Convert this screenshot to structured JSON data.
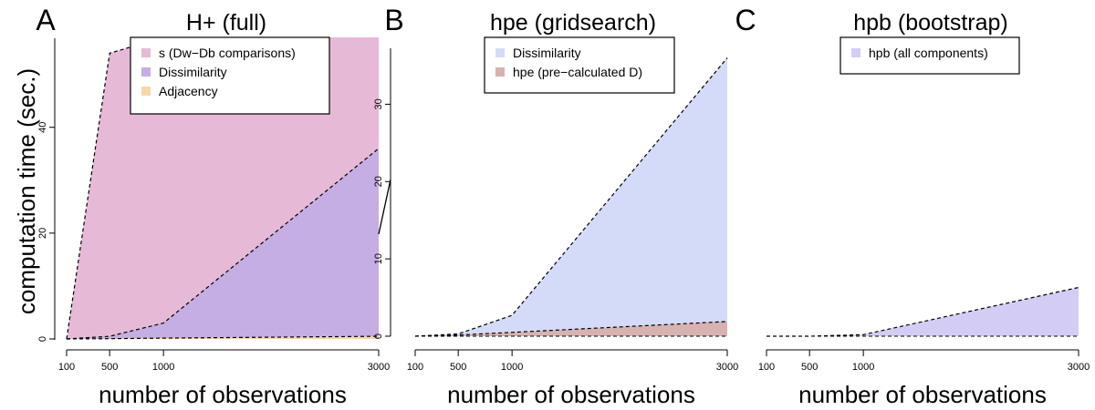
{
  "figure": {
    "ylabel": "computation time (sec.)",
    "xlabel": "number of observations"
  },
  "chart_data": [
    {
      "type": "area",
      "panel_letter": "A",
      "title": "H+ (full)",
      "xlabel": "number of observations",
      "ylabel": "computation time (sec.)",
      "x": [
        100,
        500,
        1000,
        3000
      ],
      "x_ticks": [
        "100",
        "500",
        "1000",
        "3000"
      ],
      "y_ticks": [
        "0",
        "20",
        "40"
      ],
      "xlim": [
        100,
        3000
      ],
      "ylim": [
        0,
        57
      ],
      "legend_position": "top-right",
      "series": [
        {
          "name": "s (Dw−Db comparisons)",
          "color": "#e6bad6",
          "values": [
            0,
            54,
            57,
            57
          ]
        },
        {
          "name": "Dissimilarity",
          "color": "#c4aee3",
          "values": [
            0,
            0.5,
            3,
            36
          ]
        },
        {
          "name": "Adjacency",
          "color": "#f7d7a9",
          "values": [
            0,
            0.05,
            0.15,
            0.5
          ]
        }
      ]
    },
    {
      "type": "area",
      "panel_letter": "B",
      "title": "hpe (gridsearch)",
      "xlabel": "number of observations",
      "x": [
        100,
        500,
        1000,
        3000
      ],
      "x_ticks": [
        "100",
        "500",
        "1000",
        "3000"
      ],
      "y_ticks": [
        "0",
        "10",
        "20",
        "30"
      ],
      "xlim": [
        100,
        3000
      ],
      "ylim": [
        0,
        37
      ],
      "legend_position": "top-left",
      "series": [
        {
          "name": "Dissimilarity",
          "color": "#d3dbf8",
          "values": [
            0,
            0.3,
            2.7,
            36
          ]
        },
        {
          "name": "hpe (pre−calculated D)",
          "color": "#d8b2b1",
          "values": [
            0,
            0.15,
            0.5,
            1.9
          ]
        }
      ]
    },
    {
      "type": "area",
      "panel_letter": "C",
      "title": "hpb (bootstrap)",
      "xlabel": "number of observations",
      "x": [
        100,
        500,
        1000,
        3000
      ],
      "x_ticks": [
        "100",
        "500",
        "1000",
        "3000"
      ],
      "xlim": [
        100,
        3000
      ],
      "ylim": [
        0,
        37
      ],
      "legend_position": "top-center",
      "series": [
        {
          "name": "hpb (all components)",
          "color": "#d3cdf6",
          "values": [
            0,
            0,
            0.2,
            6.3
          ]
        }
      ]
    }
  ]
}
